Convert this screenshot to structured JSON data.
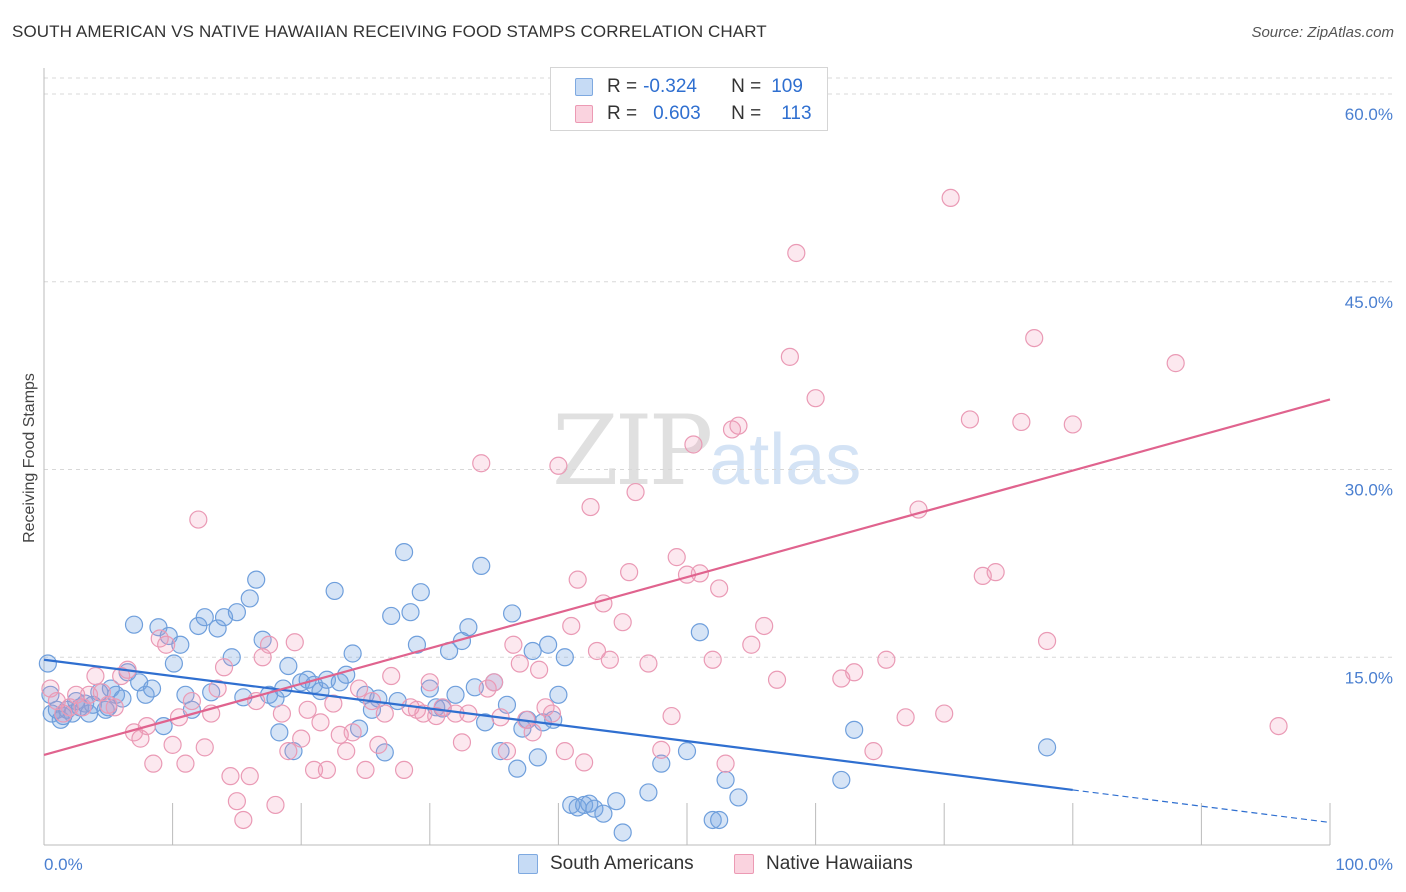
{
  "header": {
    "title": "SOUTH AMERICAN VS NATIVE HAWAIIAN RECEIVING FOOD STAMPS CORRELATION CHART",
    "source": "Source: ZipAtlas.com"
  },
  "watermark": {
    "zip": "ZIP",
    "atlas": "atlas"
  },
  "legend": {
    "rows": [
      {
        "r_label": "R =",
        "r_value": "-0.324",
        "n_label": "N =",
        "n_value": "109",
        "color": "#a9c8f0"
      },
      {
        "r_label": "R =",
        "r_value": "0.603",
        "n_label": "N =",
        "n_value": "113",
        "color": "#f5b9cb"
      }
    ]
  },
  "bottom_legend": [
    {
      "label": "South Americans",
      "color": "#a9c8f0"
    },
    {
      "label": "Native Hawaiians",
      "color": "#f5b9cb"
    }
  ],
  "colors": {
    "blue_fill": "rgba(120,165,225,0.30)",
    "blue_stroke": "#6f9fdc",
    "blue_line": "#2f6fd0",
    "pink_fill": "rgba(240,150,180,0.22)",
    "pink_stroke": "#ea9ab5",
    "pink_line": "#e0638e",
    "grid": "#d8d8d8",
    "tick_text": "#4a7fd0"
  },
  "chart_data": {
    "type": "scatter",
    "title": "SOUTH AMERICAN VS NATIVE HAWAIIAN RECEIVING FOOD STAMPS CORRELATION CHART",
    "xlabel": "",
    "ylabel": "Receiving Food Stamps",
    "xlim": [
      0,
      100
    ],
    "ylim": [
      0,
      60
    ],
    "x_tick_labels": [
      "0.0%",
      "100.0%"
    ],
    "y_ticks": [
      15,
      30,
      45,
      60
    ],
    "y_tick_labels": [
      "15.0%",
      "30.0%",
      "45.0%",
      "60.0%"
    ],
    "grid": true,
    "legend_position": "top-center",
    "series": [
      {
        "name": "South Americans",
        "color": "#6f9fdc",
        "r": -0.324,
        "n": 109,
        "trend": {
          "x0": 0,
          "y0": 14.8,
          "x1": 80,
          "y1": 4.4,
          "dashed_to_x": 100,
          "dashed_to_y": 1.8
        },
        "points": [
          [
            0.3,
            14.5
          ],
          [
            0.5,
            12.0
          ],
          [
            0.6,
            10.5
          ],
          [
            1.0,
            10.8
          ],
          [
            1.3,
            10.0
          ],
          [
            1.5,
            10.3
          ],
          [
            1.8,
            10.8
          ],
          [
            2.2,
            10.5
          ],
          [
            2.5,
            11.5
          ],
          [
            2.8,
            11.0
          ],
          [
            3.2,
            11.3
          ],
          [
            3.5,
            10.5
          ],
          [
            3.8,
            11.2
          ],
          [
            4.3,
            12.2
          ],
          [
            4.8,
            10.8
          ],
          [
            5.0,
            11.0
          ],
          [
            5.2,
            12.5
          ],
          [
            5.6,
            12.0
          ],
          [
            6.1,
            11.7
          ],
          [
            6.5,
            13.8
          ],
          [
            7.0,
            17.6
          ],
          [
            7.4,
            13.0
          ],
          [
            7.9,
            12.0
          ],
          [
            8.4,
            12.5
          ],
          [
            8.9,
            17.4
          ],
          [
            9.3,
            9.5
          ],
          [
            9.7,
            16.7
          ],
          [
            10.1,
            14.5
          ],
          [
            10.6,
            16.0
          ],
          [
            11.0,
            12.0
          ],
          [
            11.5,
            10.8
          ],
          [
            12.0,
            17.5
          ],
          [
            12.5,
            18.2
          ],
          [
            13.0,
            12.2
          ],
          [
            13.5,
            17.3
          ],
          [
            14.0,
            18.2
          ],
          [
            14.6,
            15.0
          ],
          [
            15.0,
            18.6
          ],
          [
            15.5,
            11.8
          ],
          [
            16.0,
            19.7
          ],
          [
            16.5,
            21.2
          ],
          [
            17.0,
            16.4
          ],
          [
            17.5,
            12.0
          ],
          [
            18.0,
            11.7
          ],
          [
            18.3,
            9.0
          ],
          [
            18.6,
            12.5
          ],
          [
            19.0,
            14.3
          ],
          [
            19.4,
            7.5
          ],
          [
            20.0,
            13.0
          ],
          [
            20.5,
            13.2
          ],
          [
            21.0,
            12.8
          ],
          [
            21.5,
            12.3
          ],
          [
            22.0,
            13.2
          ],
          [
            22.6,
            20.3
          ],
          [
            23.0,
            13.0
          ],
          [
            23.5,
            13.6
          ],
          [
            24.0,
            15.3
          ],
          [
            24.5,
            9.3
          ],
          [
            25.0,
            12.0
          ],
          [
            25.5,
            10.8
          ],
          [
            26.0,
            11.7
          ],
          [
            26.5,
            7.4
          ],
          [
            27.0,
            18.3
          ],
          [
            27.5,
            11.5
          ],
          [
            28.0,
            23.4
          ],
          [
            28.5,
            18.6
          ],
          [
            29.0,
            16.0
          ],
          [
            29.3,
            20.2
          ],
          [
            30.0,
            12.5
          ],
          [
            30.5,
            11.0
          ],
          [
            31.0,
            10.9
          ],
          [
            31.5,
            15.5
          ],
          [
            32.0,
            12.0
          ],
          [
            32.5,
            16.3
          ],
          [
            33.0,
            17.4
          ],
          [
            33.5,
            12.6
          ],
          [
            34.0,
            22.3
          ],
          [
            34.3,
            9.8
          ],
          [
            35.0,
            13.0
          ],
          [
            35.5,
            7.5
          ],
          [
            36.0,
            11.2
          ],
          [
            36.4,
            18.5
          ],
          [
            36.8,
            6.1
          ],
          [
            37.2,
            9.3
          ],
          [
            37.6,
            10.0
          ],
          [
            38.0,
            15.5
          ],
          [
            38.4,
            7.0
          ],
          [
            38.8,
            9.8
          ],
          [
            39.2,
            16.0
          ],
          [
            39.6,
            10.0
          ],
          [
            40.0,
            12.0
          ],
          [
            40.5,
            15.0
          ],
          [
            41.0,
            3.2
          ],
          [
            41.5,
            3.0
          ],
          [
            42.0,
            3.2
          ],
          [
            42.4,
            3.3
          ],
          [
            42.8,
            2.9
          ],
          [
            43.5,
            2.5
          ],
          [
            44.5,
            3.5
          ],
          [
            45.0,
            1.0
          ],
          [
            47.0,
            4.2
          ],
          [
            48.0,
            6.5
          ],
          [
            50.0,
            7.5
          ],
          [
            51.0,
            17.0
          ],
          [
            52.0,
            2.0
          ],
          [
            52.5,
            2.0
          ],
          [
            53.0,
            5.2
          ],
          [
            54.0,
            3.8
          ],
          [
            62.0,
            5.2
          ],
          [
            63.0,
            9.2
          ],
          [
            78.0,
            7.8
          ]
        ]
      },
      {
        "name": "Native Hawaiians",
        "color": "#ea9ab5",
        "r": 0.603,
        "n": 113,
        "trend": {
          "x0": 0,
          "y0": 7.2,
          "x1": 100,
          "y1": 35.6
        },
        "points": [
          [
            0.5,
            12.5
          ],
          [
            1.0,
            11.5
          ],
          [
            1.5,
            10.5
          ],
          [
            2.0,
            11.0
          ],
          [
            2.5,
            12.0
          ],
          [
            3.0,
            11.0
          ],
          [
            3.5,
            12.0
          ],
          [
            4.0,
            13.5
          ],
          [
            4.5,
            12.2
          ],
          [
            5.0,
            11.2
          ],
          [
            5.5,
            11.0
          ],
          [
            6.0,
            13.5
          ],
          [
            6.5,
            14.0
          ],
          [
            7.0,
            9.0
          ],
          [
            7.5,
            8.5
          ],
          [
            8.0,
            9.5
          ],
          [
            8.5,
            6.5
          ],
          [
            9.0,
            16.5
          ],
          [
            9.5,
            16.0
          ],
          [
            10.0,
            8.0
          ],
          [
            10.5,
            10.2
          ],
          [
            11.0,
            6.5
          ],
          [
            11.5,
            11.5
          ],
          [
            12.0,
            26.0
          ],
          [
            12.5,
            7.8
          ],
          [
            13.0,
            10.5
          ],
          [
            13.5,
            12.5
          ],
          [
            14.0,
            14.2
          ],
          [
            14.5,
            5.5
          ],
          [
            15.0,
            3.5
          ],
          [
            15.5,
            2.0
          ],
          [
            16.0,
            5.5
          ],
          [
            16.5,
            11.5
          ],
          [
            17.0,
            15.0
          ],
          [
            17.5,
            16.0
          ],
          [
            18.0,
            3.2
          ],
          [
            18.5,
            10.5
          ],
          [
            19.0,
            7.5
          ],
          [
            19.5,
            16.2
          ],
          [
            20.0,
            8.5
          ],
          [
            20.5,
            10.8
          ],
          [
            21.0,
            6.0
          ],
          [
            21.5,
            9.8
          ],
          [
            22.0,
            6.0
          ],
          [
            22.5,
            11.3
          ],
          [
            23.0,
            8.8
          ],
          [
            23.5,
            7.5
          ],
          [
            24.0,
            9.0
          ],
          [
            24.5,
            12.5
          ],
          [
            25.0,
            6.0
          ],
          [
            25.5,
            11.5
          ],
          [
            26.0,
            8.0
          ],
          [
            26.5,
            10.5
          ],
          [
            27.0,
            13.5
          ],
          [
            28.0,
            6.0
          ],
          [
            28.5,
            11.0
          ],
          [
            29.0,
            10.8
          ],
          [
            29.5,
            10.5
          ],
          [
            30.0,
            13.0
          ],
          [
            30.5,
            10.3
          ],
          [
            31.0,
            11.0
          ],
          [
            32.0,
            10.5
          ],
          [
            32.5,
            8.2
          ],
          [
            33.0,
            10.5
          ],
          [
            34.0,
            30.5
          ],
          [
            34.5,
            12.5
          ],
          [
            35.0,
            13.0
          ],
          [
            35.5,
            10.2
          ],
          [
            36.0,
            7.5
          ],
          [
            36.5,
            16.0
          ],
          [
            37.0,
            14.5
          ],
          [
            37.5,
            10.0
          ],
          [
            38.0,
            9.0
          ],
          [
            38.5,
            14.0
          ],
          [
            39.0,
            11.0
          ],
          [
            39.5,
            10.5
          ],
          [
            40.0,
            30.3
          ],
          [
            40.5,
            7.5
          ],
          [
            41.0,
            17.5
          ],
          [
            41.5,
            21.2
          ],
          [
            42.0,
            6.6
          ],
          [
            42.5,
            27.0
          ],
          [
            43.0,
            15.5
          ],
          [
            43.5,
            19.3
          ],
          [
            44.0,
            14.8
          ],
          [
            45.0,
            17.8
          ],
          [
            45.5,
            21.8
          ],
          [
            46.0,
            28.2
          ],
          [
            47.0,
            14.5
          ],
          [
            48.0,
            7.6
          ],
          [
            48.8,
            10.3
          ],
          [
            49.2,
            23.0
          ],
          [
            50.0,
            21.6
          ],
          [
            50.5,
            32.0
          ],
          [
            51.0,
            21.7
          ],
          [
            52.0,
            14.8
          ],
          [
            52.5,
            20.5
          ],
          [
            53.0,
            6.5
          ],
          [
            53.5,
            33.2
          ],
          [
            54.0,
            33.5
          ],
          [
            55.0,
            16.0
          ],
          [
            56.0,
            17.5
          ],
          [
            57.0,
            13.2
          ],
          [
            58.0,
            39.0
          ],
          [
            58.5,
            47.3
          ],
          [
            60.0,
            35.7
          ],
          [
            62.0,
            13.3
          ],
          [
            63.0,
            13.8
          ],
          [
            64.5,
            7.5
          ],
          [
            65.5,
            14.8
          ],
          [
            67.0,
            10.2
          ],
          [
            68.0,
            26.8
          ],
          [
            70.0,
            10.5
          ],
          [
            70.5,
            51.7
          ],
          [
            72.0,
            34.0
          ],
          [
            73.0,
            21.5
          ],
          [
            74.0,
            21.8
          ],
          [
            76.0,
            33.8
          ],
          [
            77.0,
            40.5
          ],
          [
            78.0,
            16.3
          ],
          [
            80.0,
            33.6
          ],
          [
            88.0,
            38.5
          ],
          [
            96.0,
            9.5
          ]
        ]
      }
    ]
  }
}
